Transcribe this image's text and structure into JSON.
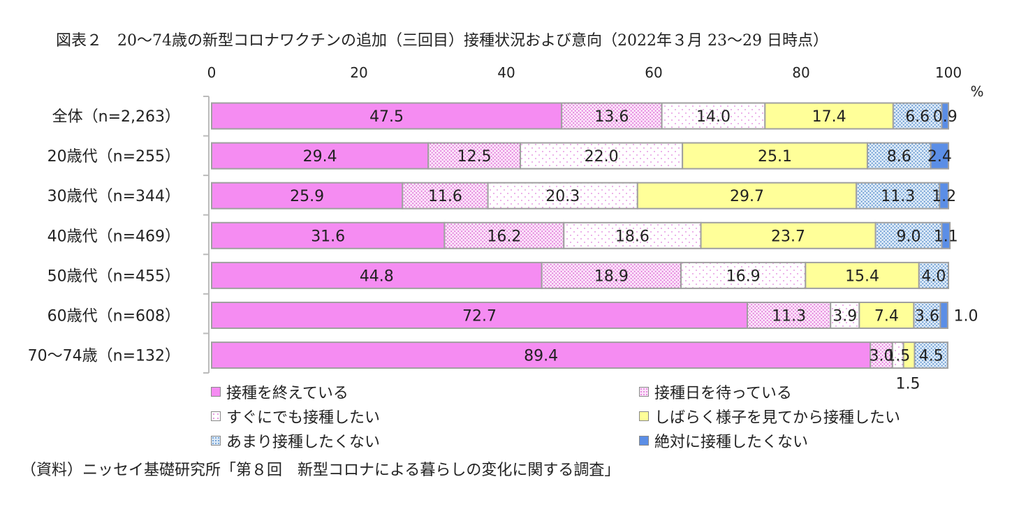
{
  "title": "図表２　20〜74歳の新型コロナワクチンの追加（三回目）接種状況および意向（2022年３月 23〜29 日時点）",
  "source": "（資料）ニッセイ基礎研究所「第８回　新型コロナによる暮らしの変化に関する調査」",
  "colors": {
    "s0": "#f58cf2",
    "s1": "#f4c9f0",
    "s2": "#ffffff",
    "s3": "#ffff99",
    "s4": "#b8d6f0",
    "s5": "#5b8ee6"
  },
  "chart_data": {
    "type": "bar",
    "orientation": "horizontal",
    "stacked": true,
    "categories": [
      "全体（n=2,263）",
      "20歳代（n=255）",
      "30歳代（n=344）",
      "40歳代（n=469）",
      "50歳代（n=455）",
      "60歳代（n=608）",
      "70〜74歳（n=132）"
    ],
    "series": [
      {
        "name": "接種を終えている",
        "values": [
          47.5,
          29.4,
          25.9,
          31.6,
          44.8,
          72.7,
          89.4
        ]
      },
      {
        "name": "接種日を待っている",
        "values": [
          13.6,
          12.5,
          11.6,
          16.2,
          18.9,
          11.3,
          3.0
        ]
      },
      {
        "name": "すぐにでも接種したい",
        "values": [
          14.0,
          22.0,
          20.3,
          18.6,
          16.9,
          3.9,
          1.5
        ]
      },
      {
        "name": "しばらく様子を見てから接種したい",
        "values": [
          17.4,
          25.1,
          29.7,
          23.7,
          15.4,
          7.4,
          1.5
        ]
      },
      {
        "name": "あまり接種したくない",
        "values": [
          6.6,
          8.6,
          11.3,
          9.0,
          4.0,
          3.6,
          4.5
        ]
      },
      {
        "name": "絶対に接種したくない",
        "values": [
          0.9,
          2.4,
          1.2,
          1.1,
          0.0,
          1.0,
          0.0
        ]
      }
    ],
    "xlim": [
      0,
      100
    ],
    "xticks": [
      0,
      20,
      40,
      60,
      80,
      100
    ],
    "unit": "%",
    "outside_labels": [
      {
        "category_index": 5,
        "text": "1.0",
        "position": "right"
      },
      {
        "category_index": 6,
        "text": "1.5",
        "position": "below"
      }
    ],
    "legend_position": "bottom"
  }
}
